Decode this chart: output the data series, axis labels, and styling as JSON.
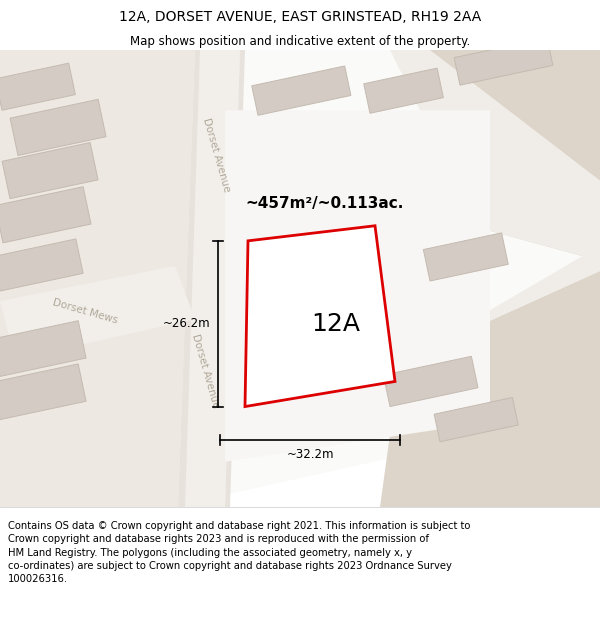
{
  "title": "12A, DORSET AVENUE, EAST GRINSTEAD, RH19 2AA",
  "subtitle": "Map shows position and indicative extent of the property.",
  "footer": "Contains OS data © Crown copyright and database right 2021. This information is subject to\nCrown copyright and database rights 2023 and is reproduced with the permission of\nHM Land Registry. The polygons (including the associated geometry, namely x, y\nco-ordinates) are subject to Crown copyright and database rights 2023 Ordnance Survey\n100026316.",
  "area_label": "~457m²/~0.113ac.",
  "property_label": "12A",
  "dim_width": "~32.2m",
  "dim_height": "~26.2m",
  "map_bg": "#ede8e2",
  "road_color": "#f8f6f3",
  "white_area": "#fafaf8",
  "building_fill": "#d4ccc4",
  "building_stroke": "#c4bab0",
  "property_fill": "#ffffff",
  "property_stroke": "#dd0000",
  "road_label_color": "#b0a898",
  "title_fontsize": 10,
  "subtitle_fontsize": 8.5,
  "footer_fontsize": 7.2,
  "label_12a_fontsize": 18,
  "area_fontsize": 11,
  "dim_fontsize": 8.5
}
